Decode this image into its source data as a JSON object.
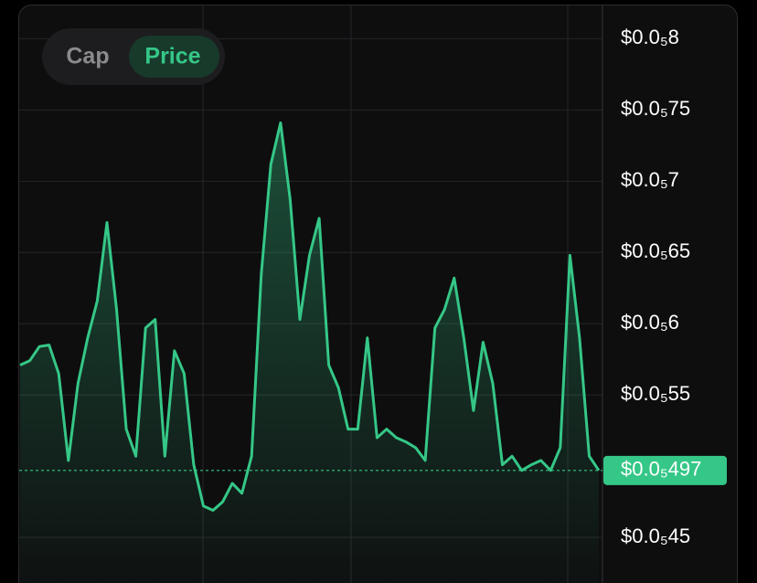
{
  "chart_data": {
    "type": "line",
    "toggle": {
      "options": [
        "Cap",
        "Price"
      ],
      "active": 1
    },
    "color": "#35c787",
    "values": [
      5.71e-06,
      5.74e-06,
      5.84e-06,
      5.85e-06,
      5.65e-06,
      5.04e-06,
      5.58e-06,
      5.9e-06,
      6.16e-06,
      6.71e-06,
      6.1e-06,
      5.26e-06,
      5.07e-06,
      5.97e-06,
      6.03e-06,
      5.07e-06,
      5.81e-06,
      5.65e-06,
      5.01e-06,
      4.72e-06,
      4.69e-06,
      4.75e-06,
      4.88e-06,
      4.81e-06,
      5.07e-06,
      6.35e-06,
      7.12e-06,
      7.41e-06,
      6.87e-06,
      6.03e-06,
      6.48e-06,
      6.74e-06,
      5.71e-06,
      5.55e-06,
      5.26e-06,
      5.26e-06,
      5.9e-06,
      5.2e-06,
      5.26e-06,
      5.2e-06,
      5.17e-06,
      5.13e-06,
      5.04e-06,
      5.97e-06,
      6.1e-06,
      6.32e-06,
      5.9e-06,
      5.39e-06,
      5.87e-06,
      5.58e-06,
      5.01e-06,
      5.07e-06,
      4.97e-06,
      5.01e-06,
      5.04e-06,
      4.97e-06,
      5.13e-06,
      6.48e-06,
      5.9e-06,
      5.07e-06,
      4.97e-06
    ],
    "current_price": {
      "value": 4.97e-06,
      "label": "$0.0₅497"
    },
    "ylim": [
      4.18e-06,
      8.24e-06
    ],
    "yticks": [
      {
        "value": 4.5e-06,
        "label": "$0.0₅45"
      },
      {
        "value": 5.5e-06,
        "label": "$0.0₅55"
      },
      {
        "value": 6e-06,
        "label": "$0.0₅6"
      },
      {
        "value": 6.5e-06,
        "label": "$0.0₅65"
      },
      {
        "value": 7e-06,
        "label": "$0.0₅7"
      },
      {
        "value": 7.5e-06,
        "label": "$0.0₅75"
      },
      {
        "value": 8e-06,
        "label": "$0.0₅8"
      }
    ],
    "grid": true
  }
}
